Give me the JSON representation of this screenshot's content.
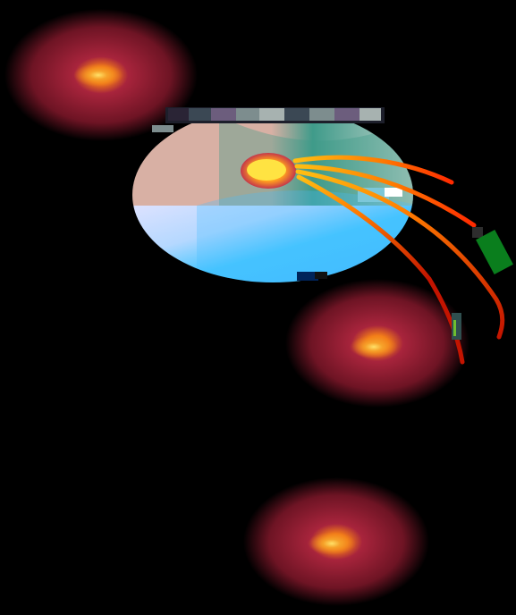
{
  "scene": {
    "background_color": "#000000",
    "glow_colors": {
      "halo_outer": "#000000",
      "halo_mid": "#6e1424",
      "halo_inner": "#a8243c",
      "core": "#f6a22a",
      "core_edge": "#f37d18"
    },
    "sphere_colors": {
      "top_left": "#d8b0a4",
      "top_mid": "#3f9b8a",
      "top_right": "#cfd9d2",
      "bottom_left": "#dde2ff",
      "bottom_mid": "#45c6ff",
      "bottom_right": "#43b7ff",
      "focus_outer": "#c4374a",
      "focus_inner": "#ffd61f"
    },
    "stream_colors": [
      "#ffbf13",
      "#ff7a00",
      "#ff2a00",
      "#ff1a00",
      "#c31400"
    ],
    "artifact_colors": [
      "#111111",
      "#1d1f2b",
      "#2a2435",
      "#3b4854",
      "#6c5d7d",
      "#7d8d8e",
      "#a7b2b0",
      "#7cc7d9",
      "#00245a",
      "#0a7e1d",
      "#6fbe2f",
      "#ffffff",
      "#2f4f4f",
      "#2d2d2d"
    ]
  }
}
